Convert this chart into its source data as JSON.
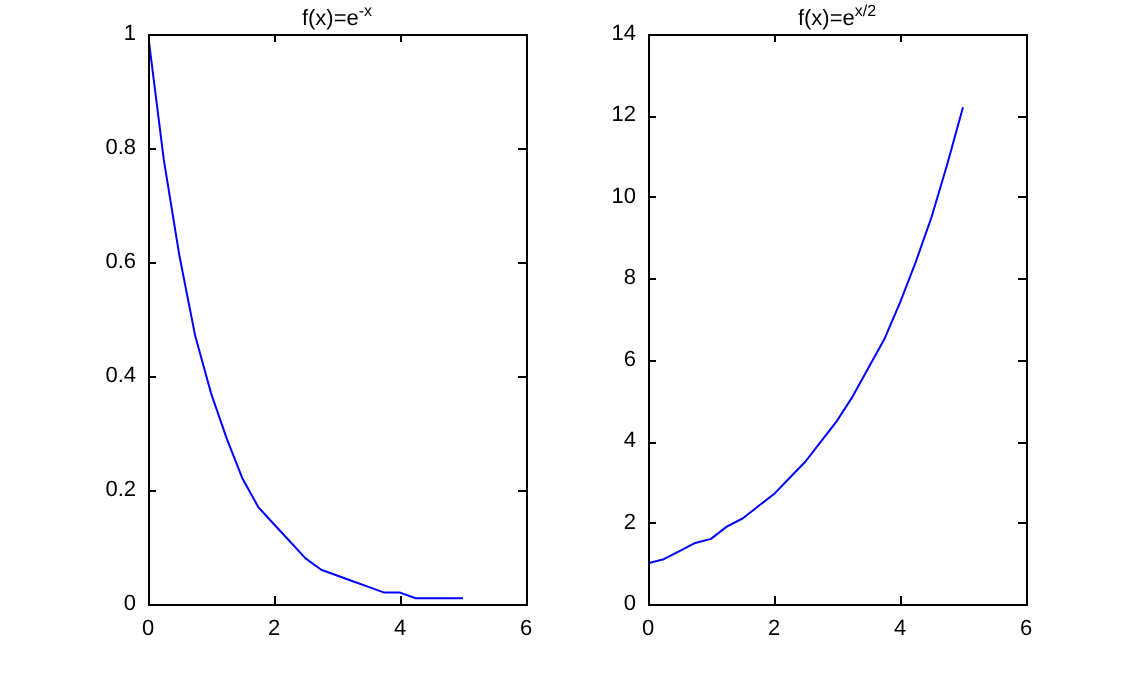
{
  "chart_data": [
    {
      "type": "line",
      "title": "f(x)=e$^{-x}$",
      "x": [
        0,
        0.25,
        0.5,
        0.75,
        1,
        1.25,
        1.5,
        1.75,
        2,
        2.25,
        2.5,
        2.75,
        3,
        3.25,
        3.5,
        3.75,
        4,
        4.25,
        4.5,
        4.75,
        5
      ],
      "values": [
        1,
        0.78,
        0.61,
        0.47,
        0.37,
        0.29,
        0.22,
        0.17,
        0.14,
        0.11,
        0.08,
        0.06,
        0.05,
        0.04,
        0.03,
        0.02,
        0.02,
        0.01,
        0.01,
        0.01,
        0.01
      ],
      "color": "#0000ff",
      "xlim": [
        0,
        6
      ],
      "xticks": [
        0,
        2,
        4,
        6
      ],
      "ylim": [
        0,
        1
      ],
      "yticks": [
        0,
        0.2,
        0.4,
        0.6,
        0.8,
        1
      ],
      "grid": false,
      "marker": "none"
    },
    {
      "type": "line",
      "title": "f(x)=e$^{x/2}$",
      "x": [
        0,
        0.25,
        0.5,
        0.75,
        1,
        1.25,
        1.5,
        1.75,
        2,
        2.25,
        2.5,
        2.75,
        3,
        3.25,
        3.5,
        3.75,
        4,
        4.25,
        4.5,
        4.75,
        5
      ],
      "values": [
        1,
        1.1,
        1.3,
        1.5,
        1.6,
        1.9,
        2.1,
        2.4,
        2.7,
        3.1,
        3.5,
        4,
        4.5,
        5.1,
        5.8,
        6.5,
        7.4,
        8.4,
        9.5,
        10.8,
        12.2
      ],
      "color": "#0000ff",
      "xlim": [
        0,
        6
      ],
      "xticks": [
        0,
        2,
        4,
        6
      ],
      "ylim": [
        0,
        14
      ],
      "yticks": [
        0,
        2,
        4,
        6,
        8,
        10,
        12,
        14
      ],
      "grid": false,
      "marker": "none"
    }
  ]
}
